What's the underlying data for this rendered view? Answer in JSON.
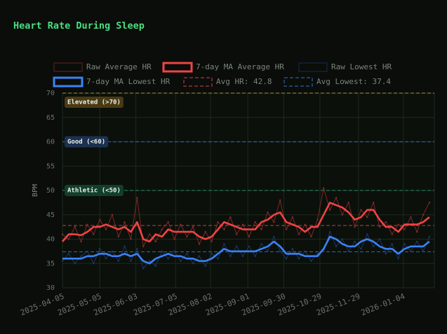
{
  "chart_data": {
    "type": "line",
    "title": "Heart Rate During Sleep",
    "y_label": "BPM",
    "grid": true,
    "x": [
      "2025-04-05",
      "2025-04-10",
      "2025-04-15",
      "2025-04-20",
      "2025-04-25",
      "2025-04-30",
      "2025-05-05",
      "2025-05-10",
      "2025-05-15",
      "2025-05-20",
      "2025-05-25",
      "2025-05-30",
      "2025-06-04",
      "2025-06-09",
      "2025-06-14",
      "2025-06-19",
      "2025-06-24",
      "2025-06-29",
      "2025-07-04",
      "2025-07-09",
      "2025-07-14",
      "2025-07-19",
      "2025-07-24",
      "2025-07-29",
      "2025-08-03",
      "2025-08-08",
      "2025-08-13",
      "2025-08-18",
      "2025-08-23",
      "2025-08-28",
      "2025-09-02",
      "2025-09-07",
      "2025-09-12",
      "2025-09-17",
      "2025-09-22",
      "2025-09-27",
      "2025-10-02",
      "2025-10-07",
      "2025-10-12",
      "2025-10-17",
      "2025-10-22",
      "2025-10-27",
      "2025-11-01",
      "2025-11-06",
      "2025-11-11",
      "2025-11-16",
      "2025-11-21",
      "2025-11-26",
      "2025-12-01",
      "2025-12-06",
      "2025-12-11",
      "2025-12-16",
      "2025-12-21",
      "2025-12-26",
      "2025-12-31",
      "2026-01-05",
      "2026-01-10",
      "2026-01-15",
      "2026-01-20",
      "2026-01-25"
    ],
    "xlim": [
      "2025-04-05",
      "2026-01-29"
    ],
    "xticks": [
      "2025-04-05",
      "2025-05-05",
      "2025-06-03",
      "2025-07-05",
      "2025-08-02",
      "2025-09-01",
      "2025-09-30",
      "2025-10-29",
      "2025-11-29",
      "2026-01-04"
    ],
    "ylim": [
      30,
      70
    ],
    "yticks": [
      30,
      35,
      40,
      45,
      50,
      55,
      60,
      65,
      70
    ],
    "series": [
      {
        "name": "Raw Average HR",
        "color": "#8b2a2a",
        "style": "raw",
        "values": [
          41,
          40,
          42.5,
          39.5,
          43,
          41,
          44,
          42,
          45,
          40.5,
          43.5,
          40,
          48.5,
          38.5,
          41,
          39.5,
          42,
          43.5,
          40,
          43,
          40.5,
          42.5,
          39,
          41.5,
          39.5,
          43.5,
          42,
          44.5,
          41,
          43,
          40.5,
          43.5,
          42,
          45.5,
          43.5,
          48,
          42,
          44.5,
          41,
          43,
          40.5,
          44,
          50.5,
          46,
          48.5,
          45,
          47.5,
          42.5,
          46,
          44.5,
          47.5,
          42.5,
          43.5,
          41,
          43,
          42,
          44.5,
          41.5,
          45,
          47.5
        ]
      },
      {
        "name": "7-day MA Average HR",
        "color": "#ef4444",
        "style": "ma",
        "values": [
          39.5,
          41,
          41,
          40.8,
          41.5,
          42.5,
          42.5,
          43,
          42.5,
          42,
          42.5,
          41.5,
          43.5,
          40,
          39.5,
          41,
          40.5,
          42,
          41.5,
          41.5,
          41.5,
          41.5,
          40.5,
          40,
          40.5,
          42,
          43.5,
          43,
          42.5,
          42,
          42,
          42,
          43.5,
          44,
          45,
          45.5,
          43.5,
          43,
          42.5,
          41.5,
          42.5,
          42.5,
          45,
          47.5,
          47,
          46.5,
          45.5,
          44,
          44.5,
          46,
          46,
          44,
          42.5,
          42.5,
          41.5,
          43,
          43,
          43,
          43.5,
          44.5
        ]
      },
      {
        "name": "Raw Lowest HR",
        "color": "#1e3a6b",
        "style": "raw",
        "values": [
          35.5,
          37,
          35,
          36.5,
          37.5,
          35,
          38,
          36,
          37.5,
          35.5,
          38.5,
          35.5,
          38,
          34,
          35.5,
          34.5,
          37.5,
          36,
          37.5,
          35.5,
          37,
          35,
          36.5,
          34.5,
          37,
          36,
          39,
          36.5,
          38.5,
          36.5,
          38.5,
          36.5,
          39,
          37.5,
          40.5,
          37.5,
          36,
          38,
          36,
          37.5,
          35.5,
          37,
          37.5,
          41.5,
          38.5,
          40,
          37.5,
          39.5,
          38,
          41,
          38.5,
          40,
          37,
          39,
          36,
          39,
          37.5,
          39.5,
          37.5,
          40.5
        ]
      },
      {
        "name": "7-day MA Lowest HR",
        "color": "#3b82f6",
        "style": "ma",
        "values": [
          36,
          36,
          36,
          36,
          36.5,
          36.5,
          37,
          37,
          36.5,
          36.5,
          37,
          36.5,
          37,
          35.5,
          35,
          36,
          36.5,
          37,
          36.5,
          36.5,
          36,
          36,
          35.5,
          35.5,
          36,
          37,
          38,
          37.5,
          37.5,
          37.5,
          37.5,
          37.5,
          38,
          38.5,
          39.5,
          38.5,
          37,
          37,
          37,
          36.5,
          36.5,
          36.5,
          38,
          40.5,
          40,
          39,
          38.5,
          38.5,
          39.5,
          40,
          39.5,
          38.5,
          38,
          38,
          37,
          38,
          38.5,
          38.5,
          38.5,
          39.5
        ]
      }
    ],
    "reference_lines": [
      {
        "name": "Avg HR: 42.8",
        "value": 42.8,
        "color": "#b03a3a"
      },
      {
        "name": "Avg Lowest: 37.4",
        "value": 37.4,
        "color": "#2e5f9e"
      }
    ],
    "zones": [
      {
        "label": "Elevated (>70)",
        "value": 70,
        "color": "#8a7a2a",
        "box": "#4a3a14"
      },
      {
        "label": "Good (<60)",
        "value": 60,
        "color": "#2e5f9e",
        "box": "#1c3150"
      },
      {
        "label": "Athletic (<50)",
        "value": 50,
        "color": "#1f7a4f",
        "box": "#123f2a"
      }
    ]
  }
}
